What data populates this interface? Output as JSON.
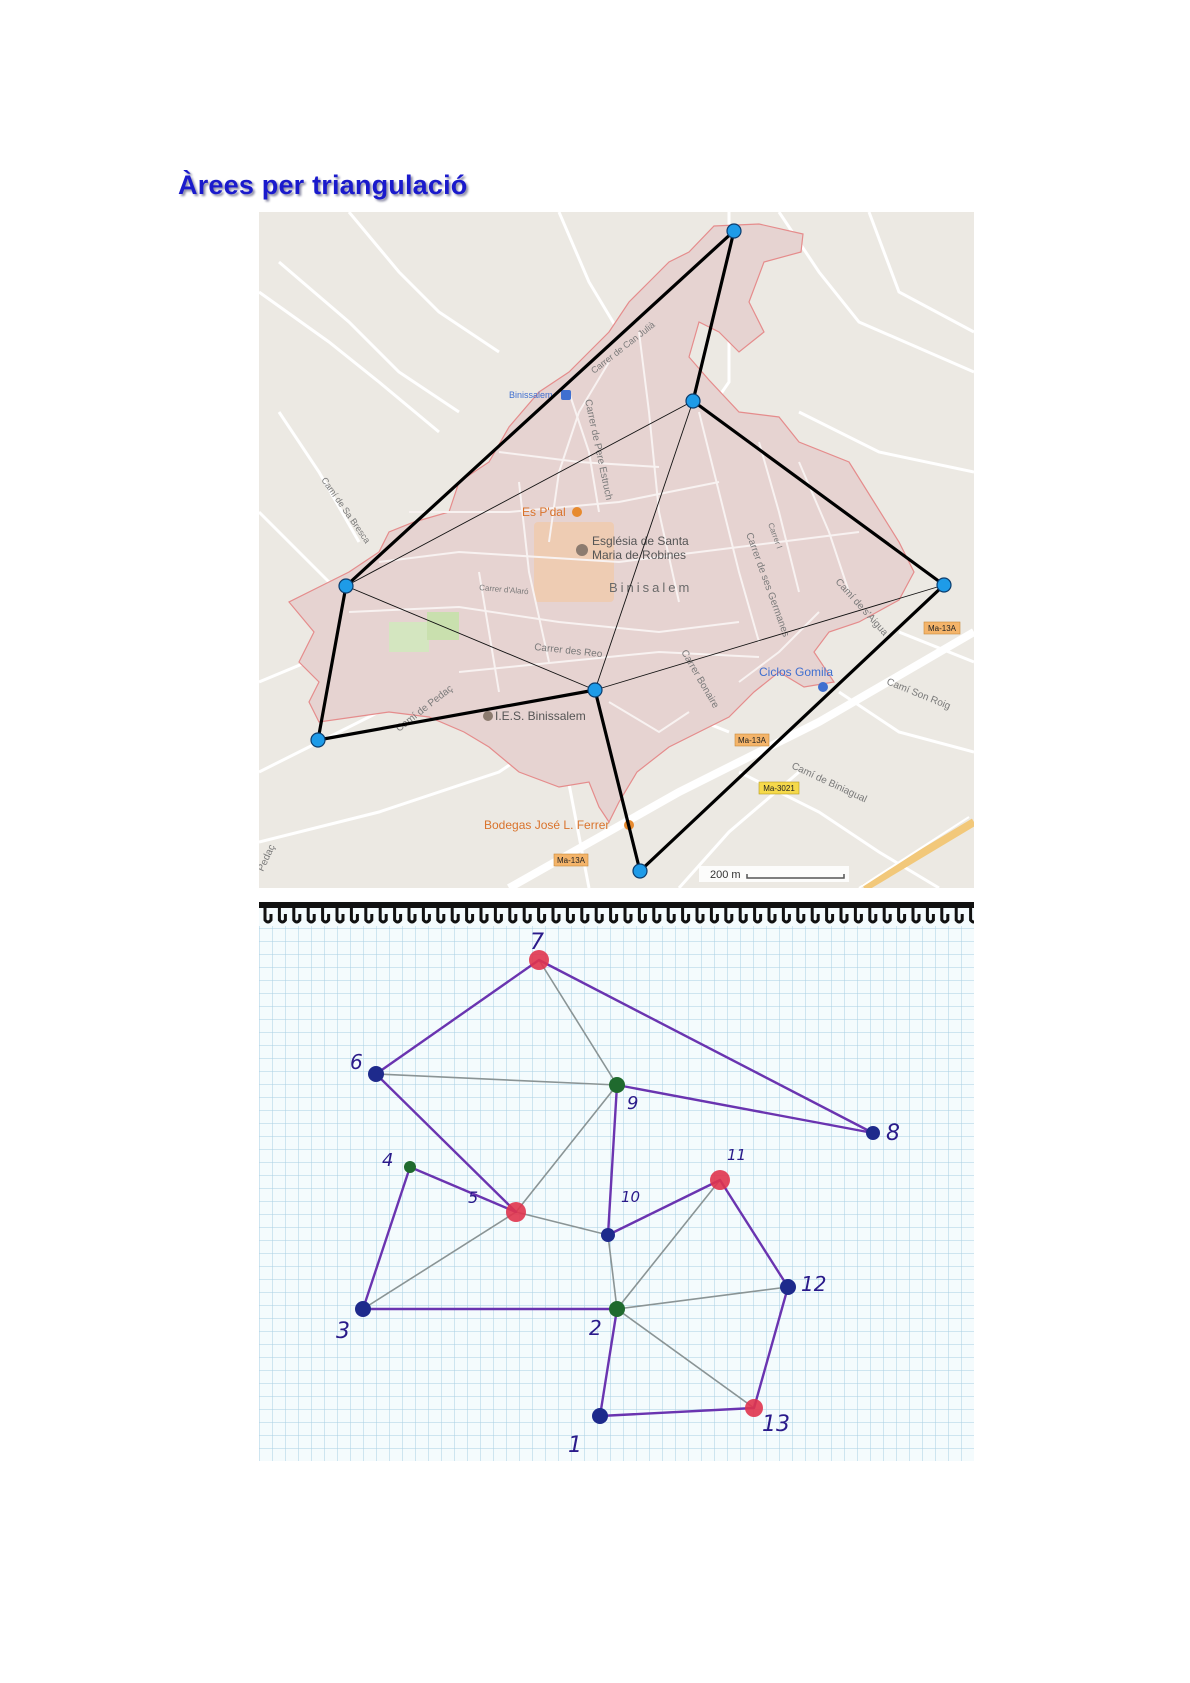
{
  "document": {
    "title": "Àrees per triangulació"
  },
  "map": {
    "streets": [
      "Carrer de Can Julià",
      "Carrer de Pere Estruch",
      "Camí de Sa Bresca",
      "Carrer d'Alaró",
      "Carrer des Reo",
      "Carrer Bonaire",
      "Carrer de ses Germanes",
      "Carrer l",
      "Camí de s'Aigua",
      "Camí Son Roig",
      "Camí de Pedaç",
      "Camí de Biniagual",
      "Pedaç"
    ],
    "places": {
      "station": "Binissalem",
      "pdal": "Es P'dal",
      "church_line1": "Església de Santa",
      "church_line2": "Maria de Robines",
      "town": "Binisalem",
      "ciclos": "Ciclos Gomila",
      "ies": "I.E.S. Binissalem",
      "bodegas": "Bodegas José L. Ferrer"
    },
    "road_badges": [
      "Ma-13A",
      "Ma-13A",
      "Ma-3021",
      "Ma-13A"
    ],
    "scale_label": "200 m",
    "colors": {
      "outline": "#000000",
      "vertex": "#1e9be8",
      "town_fill": "#e6d3d1",
      "town_border": "#e58c8c",
      "badge_orange": "#f4b46a",
      "badge_yellow": "#f5d94a",
      "poi_orange": "#d9732c",
      "poi_blue": "#3f6fd0"
    }
  },
  "notebook": {
    "vertex_labels": [
      "1",
      "2",
      "3",
      "4",
      "5",
      "6",
      "7",
      "8",
      "9",
      "10",
      "11",
      "12",
      "13"
    ],
    "colors": {
      "outline": "#6a34b0",
      "diagonal": "#8a9495",
      "red": "#e0344e",
      "blue": "#1e2a8c",
      "green": "#1f6a2e",
      "grid": "#a9cfe2",
      "label": "#2a1a8a"
    }
  }
}
